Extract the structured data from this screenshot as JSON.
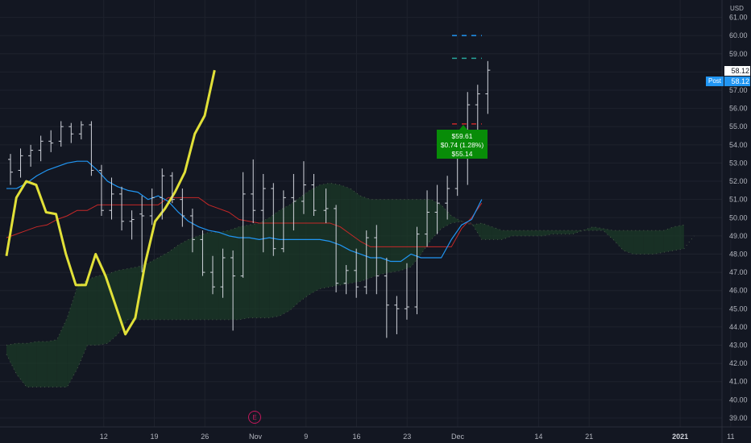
{
  "axis": {
    "currency": "USD",
    "y_ticks": [
      "61.00",
      "60.00",
      "59.00",
      "58.00",
      "57.00",
      "56.00",
      "55.00",
      "54.00",
      "53.00",
      "52.00",
      "51.00",
      "50.00",
      "49.00",
      "48.00",
      "47.00",
      "46.00",
      "45.00",
      "44.00",
      "43.00",
      "42.00",
      "41.00",
      "40.00",
      "39.00"
    ],
    "x_ticks": [
      "12",
      "19",
      "26",
      "Nov",
      "9",
      "16",
      "23",
      "Dec",
      "14",
      "21",
      "2021",
      "11"
    ]
  },
  "price_tags": {
    "last_price": "58.12",
    "post_label": "Post",
    "post_price": "58.12"
  },
  "range_tooltip": {
    "line1": "$59.61",
    "line2": "$0.74 (1.28%)",
    "line3": "$55.14"
  },
  "earnings_marker": "E",
  "colors": {
    "background": "#131722",
    "candles": "#d1d4dc",
    "tenkan_line": "#2196f3",
    "kijun_line": "#c62828",
    "cloud_bull": "#1b3a27",
    "cloud_bear": "#4a1f29",
    "overlay_line": "#e1e038",
    "tooltip": "#088c08"
  },
  "chart_data": {
    "type": "ohlc",
    "ylim": [
      38.6,
      61.6
    ],
    "x_ticks": [
      {
        "label": "12",
        "bar": 5
      },
      {
        "label": "19",
        "bar": 10
      },
      {
        "label": "26",
        "bar": 15
      },
      {
        "label": "Nov",
        "bar": 20
      },
      {
        "label": "9",
        "bar": 25
      },
      {
        "label": "16",
        "bar": 30
      },
      {
        "label": "23",
        "bar": 35
      },
      {
        "label": "Dec",
        "bar": 40
      },
      {
        "label": "14",
        "bar": 48
      },
      {
        "label": "21",
        "bar": 53
      },
      {
        "label": "2021",
        "bar": 62
      },
      {
        "label": "11",
        "bar": 67
      }
    ],
    "ohlc": [
      [
        53.2,
        53.5,
        51.8,
        52.5
      ],
      [
        52.6,
        53.8,
        52.2,
        53.4
      ],
      [
        53.4,
        54.0,
        52.8,
        53.7
      ],
      [
        53.7,
        54.5,
        53.1,
        54.2
      ],
      [
        54.2,
        54.8,
        53.6,
        54.1
      ],
      [
        54.2,
        55.3,
        53.9,
        55.0
      ],
      [
        55.0,
        55.2,
        54.1,
        54.6
      ],
      [
        54.6,
        55.3,
        54.3,
        55.1
      ],
      [
        55.1,
        55.3,
        52.3,
        52.6
      ],
      [
        52.6,
        52.9,
        50.1,
        50.4
      ],
      [
        50.4,
        52.2,
        49.9,
        51.3
      ],
      [
        51.3,
        51.7,
        49.3,
        49.8
      ],
      [
        49.8,
        50.4,
        48.8,
        49.9
      ],
      [
        50.2,
        51.2,
        47.0,
        50.1
      ],
      [
        50.1,
        51.6,
        49.6,
        51.1
      ],
      [
        51.1,
        52.7,
        49.9,
        52.3
      ],
      [
        52.3,
        52.5,
        50.8,
        51.0
      ],
      [
        51.0,
        51.6,
        49.5,
        50.1
      ],
      [
        50.1,
        50.5,
        48.1,
        48.8
      ],
      [
        48.8,
        49.3,
        46.8,
        47.0
      ],
      [
        47.0,
        47.9,
        45.8,
        46.2
      ],
      [
        46.2,
        48.3,
        45.6,
        47.8
      ],
      [
        47.8,
        48.2,
        43.8,
        46.8
      ],
      [
        46.8,
        52.5,
        46.7,
        51.3
      ],
      [
        51.3,
        53.2,
        49.7,
        50.4
      ],
      [
        50.4,
        52.4,
        48.1,
        51.6
      ],
      [
        51.6,
        51.9,
        47.9,
        48.3
      ],
      [
        48.3,
        51.5,
        48.1,
        51.1
      ],
      [
        51.1,
        52.4,
        49.3,
        50.9
      ],
      [
        50.9,
        53.1,
        50.2,
        51.8
      ],
      [
        51.8,
        52.4,
        50.1,
        50.4
      ],
      [
        50.4,
        51.6,
        49.7,
        50.5
      ],
      [
        50.5,
        50.7,
        45.9,
        46.4
      ],
      [
        46.4,
        47.4,
        45.8,
        47.1
      ],
      [
        47.1,
        48.3,
        45.6,
        46.2
      ],
      [
        46.2,
        49.3,
        45.8,
        48.9
      ],
      [
        48.9,
        49.6,
        45.8,
        46.8
      ],
      [
        46.8,
        47.8,
        43.4,
        45.2
      ],
      [
        45.2,
        45.7,
        43.6,
        45.0
      ],
      [
        45.0,
        47.5,
        44.4,
        45.1
      ],
      [
        45.1,
        49.5,
        44.7,
        49.1
      ],
      [
        49.1,
        51.5,
        48.4,
        50.3
      ],
      [
        50.3,
        51.8,
        49.1,
        50.8
      ],
      [
        50.8,
        52.3,
        49.9,
        51.6
      ],
      [
        51.6,
        53.9,
        51.2,
        53.6
      ],
      [
        53.6,
        56.9,
        51.8,
        56.2
      ],
      [
        56.2,
        57.3,
        54.4,
        56.8
      ],
      [
        56.8,
        58.6,
        55.7,
        58.1
      ]
    ],
    "series": [
      {
        "values": [
          51.6,
          51.6,
          51.9,
          52.3,
          52.6,
          52.8,
          53.0,
          53.1,
          53.1,
          52.6,
          52.0,
          51.7,
          51.5,
          51.4,
          51.0,
          51.2,
          50.9,
          50.3,
          49.8,
          49.5,
          49.3,
          49.2,
          49.0,
          48.9,
          48.9,
          48.8,
          48.9,
          48.8,
          48.8,
          48.8,
          48.8,
          48.8,
          48.7,
          48.5,
          48.2,
          48.0,
          47.8,
          47.8,
          47.6,
          47.6,
          48.0,
          47.8,
          47.8,
          47.8,
          48.8,
          49.6,
          49.9,
          51.0
        ],
        "start": 0
      },
      {
        "values": [
          48.9,
          49.1,
          49.3,
          49.5,
          49.6,
          49.9,
          50.1,
          50.4,
          50.4,
          50.7,
          50.7,
          50.7,
          50.7,
          50.7,
          50.7,
          50.7,
          51.1,
          51.1,
          51.1,
          51.1,
          50.7,
          50.5,
          50.3,
          49.9,
          49.8,
          49.7,
          49.7,
          49.7,
          49.7,
          49.7,
          49.7,
          49.7,
          49.7,
          49.5,
          49.1,
          48.7,
          48.4,
          48.4,
          48.4,
          48.4,
          48.4,
          48.4,
          48.4,
          48.4,
          48.4,
          49.4,
          50.0,
          50.8
        ],
        "start": 0
      },
      {
        "values": [
          43.0,
          43.1,
          43.1,
          43.2,
          43.2,
          43.3,
          44.5,
          46.2,
          46.6,
          46.8,
          46.9,
          47.1,
          47.2,
          47.3,
          47.5,
          47.8,
          48.1,
          48.5,
          48.8,
          49.0,
          49.2,
          49.2,
          49.3,
          49.5,
          49.6,
          49.7,
          50.0,
          50.4,
          50.7,
          51.1,
          51.5,
          51.8,
          51.9,
          51.8,
          51.6,
          51.2,
          51.0,
          51.0,
          51.0,
          51.0,
          51.0,
          51.0,
          51.0,
          50.7,
          50.1,
          49.8,
          49.6,
          49.7,
          49.5,
          49.3,
          49.3,
          49.3,
          49.3,
          49.3,
          49.3,
          49.3,
          49.3,
          49.3,
          49.5,
          49.4,
          49.3,
          49.3,
          49.3,
          49.3,
          49.3,
          49.3,
          49.5,
          49.6
        ],
        "start": 0
      },
      {
        "values": [
          42.5,
          41.4,
          40.7,
          40.7,
          40.7,
          40.7,
          40.7,
          41.7,
          43.0,
          43.0,
          43.1,
          43.6,
          44.4,
          44.4,
          44.4,
          44.4,
          44.4,
          44.4,
          44.4,
          44.4,
          44.4,
          44.4,
          44.4,
          44.4,
          44.5,
          44.5,
          44.5,
          44.6,
          44.9,
          45.4,
          45.8,
          46.1,
          46.2,
          46.3,
          46.4,
          46.5,
          46.7,
          46.9,
          47.0,
          47.1,
          47.3,
          48.0,
          48.8,
          49.4,
          49.7,
          49.8,
          49.7,
          48.8,
          48.8,
          48.8,
          49.0,
          49.0,
          49.0,
          49.0,
          49.1,
          49.1,
          49.1,
          49.3,
          49.3,
          49.3,
          48.8,
          48.2,
          48.0,
          48.0,
          48.0,
          48.1,
          48.2,
          48.3,
          49.0
        ],
        "start": 0
      },
      {
        "values": [
          47.9,
          51.1,
          52.0,
          51.8,
          50.3,
          50.2,
          48.0,
          46.3,
          46.3,
          48.0,
          46.8,
          45.2,
          43.6,
          44.5,
          47.5,
          49.8,
          50.5,
          51.4,
          52.5,
          54.6,
          55.6,
          58.1
        ],
        "start": 0
      }
    ],
    "levels": [
      {
        "name": "upper-dashed",
        "value": 60.0,
        "color": "#2196f3"
      },
      {
        "name": "green-dashed",
        "value": 58.75,
        "color": "#26a69a"
      },
      {
        "name": "red-dashed",
        "value": 55.15,
        "color": "#c62828"
      }
    ]
  }
}
